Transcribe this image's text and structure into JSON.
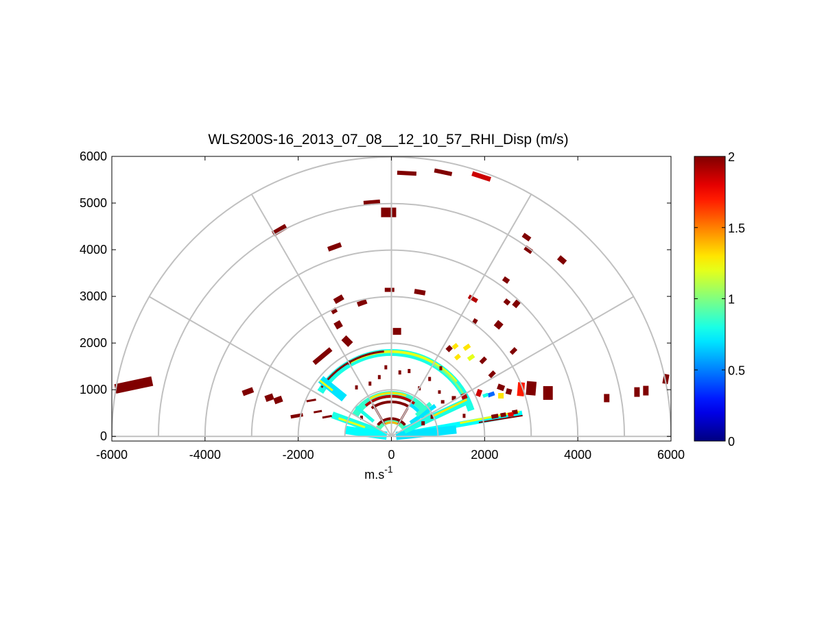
{
  "chart_data": {
    "type": "heatmap",
    "title": "WLS200S-16_2013_07_08__12_10_57_RHI_Disp (m/s)",
    "xlabel": "m.s",
    "xlabel_superscript": "-1",
    "ylabel": "",
    "xlim": [
      -6000,
      6000
    ],
    "ylim": [
      -100,
      6000
    ],
    "x_ticks": [
      -6000,
      -4000,
      -2000,
      0,
      2000,
      4000,
      6000
    ],
    "y_ticks": [
      0,
      1000,
      2000,
      3000,
      4000,
      5000,
      6000
    ],
    "polar_grid": {
      "range_rings": [
        1000,
        2000,
        3000,
        4000,
        5000,
        6000
      ],
      "spokes_deg": [
        0,
        30,
        60,
        90,
        120,
        150,
        180
      ]
    },
    "colorbar": {
      "colormap": "jet",
      "range": [
        0,
        2
      ],
      "ticks": [
        0,
        0.5,
        1,
        1.5,
        2
      ]
    },
    "cells": [
      {
        "x": -5530,
        "y": 1100,
        "v": 2,
        "w": 14,
        "h": 55,
        "a": 78
      },
      {
        "x": -3080,
        "y": 960,
        "v": 2,
        "w": 8,
        "h": 16,
        "a": 70
      },
      {
        "x": -2620,
        "y": 830,
        "v": 2,
        "w": 9,
        "h": 12,
        "a": 70
      },
      {
        "x": -2430,
        "y": 780,
        "v": 2,
        "w": 9,
        "h": 12,
        "a": 70
      },
      {
        "x": -2030,
        "y": 440,
        "v": 2,
        "w": 5,
        "h": 18,
        "a": 80
      },
      {
        "x": -1480,
        "y": 1720,
        "v": 2,
        "w": 32,
        "h": 7,
        "a": -40
      },
      {
        "x": -1580,
        "y": 530,
        "v": 2,
        "w": 3,
        "h": 12,
        "a": 80
      },
      {
        "x": -1380,
        "y": 420,
        "v": 2,
        "w": 3,
        "h": 14,
        "a": 80
      },
      {
        "x": -1720,
        "y": 770,
        "v": 2,
        "w": 3,
        "h": 14,
        "a": 80
      },
      {
        "x": -2400,
        "y": 4420,
        "v": 2,
        "w": 22,
        "h": 8,
        "a": -30
      },
      {
        "x": -1220,
        "y": 4060,
        "v": 2,
        "w": 20,
        "h": 7,
        "a": -20
      },
      {
        "x": -1130,
        "y": 2940,
        "v": 2,
        "w": 14,
        "h": 8,
        "a": -30
      },
      {
        "x": -630,
        "y": 2860,
        "v": 2,
        "w": 14,
        "h": 7,
        "a": -20
      },
      {
        "x": -1230,
        "y": 2690,
        "v": 2,
        "w": 8,
        "h": 7,
        "a": -30
      },
      {
        "x": -1140,
        "y": 2390,
        "v": 2,
        "w": 10,
        "h": 10,
        "a": -30
      },
      {
        "x": -950,
        "y": 2040,
        "v": 2,
        "w": 10,
        "h": 14,
        "a": -45
      },
      {
        "x": -420,
        "y": 5010,
        "v": 2,
        "w": 24,
        "h": 7,
        "a": -5
      },
      {
        "x": -60,
        "y": 4800,
        "v": 2,
        "w": 22,
        "h": 14,
        "a": 0
      },
      {
        "x": -40,
        "y": 3140,
        "v": 2,
        "w": 14,
        "h": 6,
        "a": 0
      },
      {
        "x": 120,
        "y": 2250,
        "v": 2,
        "w": 12,
        "h": 10,
        "a": 0
      },
      {
        "x": 330,
        "y": 5640,
        "v": 2,
        "w": 28,
        "h": 6,
        "a": 3
      },
      {
        "x": 1110,
        "y": 5660,
        "v": 2,
        "w": 26,
        "h": 6,
        "a": 12
      },
      {
        "x": 1930,
        "y": 5570,
        "v": 1.85,
        "w": 28,
        "h": 7,
        "a": 18
      },
      {
        "x": 610,
        "y": 3090,
        "v": 2,
        "w": 16,
        "h": 7,
        "a": 10
      },
      {
        "x": 1750,
        "y": 2950,
        "v": 1.9,
        "w": 14,
        "h": 6,
        "a": 30
      },
      {
        "x": 1790,
        "y": 2460,
        "v": 2,
        "w": 6,
        "h": 8,
        "a": 30
      },
      {
        "x": 2300,
        "y": 2390,
        "v": 2,
        "w": 10,
        "h": 10,
        "a": 40
      },
      {
        "x": 2480,
        "y": 2880,
        "v": 2,
        "w": 8,
        "h": 7,
        "a": 40
      },
      {
        "x": 2680,
        "y": 2840,
        "v": 2,
        "w": 8,
        "h": 10,
        "a": 40
      },
      {
        "x": 2460,
        "y": 3350,
        "v": 2,
        "w": 9,
        "h": 7,
        "a": 35
      },
      {
        "x": 2900,
        "y": 4270,
        "v": 2,
        "w": 12,
        "h": 7,
        "a": 35
      },
      {
        "x": 2940,
        "y": 4000,
        "v": 2,
        "w": 12,
        "h": 7,
        "a": 35
      },
      {
        "x": 3660,
        "y": 3780,
        "v": 2,
        "w": 12,
        "h": 8,
        "a": 40
      },
      {
        "x": 2160,
        "y": 1330,
        "v": 2,
        "w": 6,
        "h": 10,
        "a": 45
      },
      {
        "x": 1970,
        "y": 1630,
        "v": 2,
        "w": 6,
        "h": 10,
        "a": 45
      },
      {
        "x": 2620,
        "y": 1830,
        "v": 2,
        "w": 6,
        "h": 10,
        "a": 45
      },
      {
        "x": 2350,
        "y": 1050,
        "v": 2,
        "w": 10,
        "h": 8,
        "a": 20
      },
      {
        "x": 2520,
        "y": 960,
        "v": 2,
        "w": 8,
        "h": 8,
        "a": 15
      },
      {
        "x": 3000,
        "y": 1030,
        "v": 2,
        "w": 14,
        "h": 20,
        "a": 5
      },
      {
        "x": 3360,
        "y": 930,
        "v": 2,
        "w": 14,
        "h": 20,
        "a": 0
      },
      {
        "x": 4620,
        "y": 820,
        "v": 2,
        "w": 8,
        "h": 12,
        "a": 0
      },
      {
        "x": 5270,
        "y": 950,
        "v": 2,
        "w": 8,
        "h": 14,
        "a": 0
      },
      {
        "x": 5460,
        "y": 980,
        "v": 2,
        "w": 8,
        "h": 14,
        "a": 0
      },
      {
        "x": 5890,
        "y": 1230,
        "v": 2,
        "w": 8,
        "h": 14,
        "a": 10
      },
      {
        "x": 2780,
        "y": 1010,
        "v": 1.7,
        "w": 10,
        "h": 20,
        "a": 5
      },
      {
        "x": 1880,
        "y": 930,
        "v": 1.85,
        "w": 7,
        "h": 10,
        "a": 20
      },
      {
        "x": 2140,
        "y": 900,
        "v": 0.45,
        "w": 10,
        "h": 6,
        "a": -20
      },
      {
        "x": 2350,
        "y": 870,
        "v": 1.3,
        "w": 8,
        "h": 8,
        "a": 0
      },
      {
        "x": 2020,
        "y": 880,
        "v": 0.8,
        "w": 8,
        "h": 5,
        "a": -20
      },
      {
        "x": 1240,
        "y": 1880,
        "v": 2,
        "w": 7,
        "h": 8,
        "a": 45
      },
      {
        "x": 1370,
        "y": 1930,
        "v": 1.3,
        "w": 6,
        "h": 8,
        "a": 50
      },
      {
        "x": 1620,
        "y": 1910,
        "v": 1.3,
        "w": 6,
        "h": 10,
        "a": 55
      },
      {
        "x": 1420,
        "y": 1700,
        "v": 1.3,
        "w": 6,
        "h": 8,
        "a": 50
      },
      {
        "x": 1710,
        "y": 1690,
        "v": 1.2,
        "w": 6,
        "h": 10,
        "a": 55
      },
      {
        "x": 2650,
        "y": 520,
        "v": 2,
        "w": 8,
        "h": 6,
        "a": -10
      },
      {
        "x": 2560,
        "y": 470,
        "v": 1.8,
        "w": 8,
        "h": 6,
        "a": -10
      },
      {
        "x": 2400,
        "y": 460,
        "v": 2,
        "w": 8,
        "h": 6,
        "a": -10
      },
      {
        "x": 2220,
        "y": 430,
        "v": 2,
        "w": 10,
        "h": 6,
        "a": -10
      },
      {
        "x": 1560,
        "y": 860,
        "v": 1.9,
        "w": 8,
        "h": 8,
        "a": -20
      },
      {
        "x": 1340,
        "y": 820,
        "v": 2,
        "w": 6,
        "h": 6,
        "a": 0
      },
      {
        "x": 1100,
        "y": 740,
        "v": 2,
        "w": 5,
        "h": 5,
        "a": 0
      },
      {
        "x": 1030,
        "y": 950,
        "v": 2,
        "w": 4,
        "h": 5,
        "a": 0
      },
      {
        "x": 820,
        "y": 1230,
        "v": 2,
        "w": 4,
        "h": 6,
        "a": 0
      },
      {
        "x": 600,
        "y": 1030,
        "v": 2,
        "w": 4,
        "h": 6,
        "a": 0
      },
      {
        "x": -260,
        "y": 1270,
        "v": 2,
        "w": 4,
        "h": 6,
        "a": 0
      },
      {
        "x": -460,
        "y": 1130,
        "v": 2,
        "w": 4,
        "h": 6,
        "a": 0
      },
      {
        "x": -750,
        "y": 1050,
        "v": 2,
        "w": 4,
        "h": 6,
        "a": 0
      },
      {
        "x": -120,
        "y": 1480,
        "v": 2,
        "w": 4,
        "h": 6,
        "a": 0
      },
      {
        "x": 180,
        "y": 1370,
        "v": 2,
        "w": 4,
        "h": 6,
        "a": 0
      },
      {
        "x": 380,
        "y": 1400,
        "v": 2,
        "w": 4,
        "h": 6,
        "a": 0
      },
      {
        "x": 1060,
        "y": 1460,
        "v": 2,
        "w": 4,
        "h": 6,
        "a": 0
      },
      {
        "x": -900,
        "y": 1580,
        "v": 2,
        "w": 4,
        "h": 6,
        "a": 0
      },
      {
        "x": -640,
        "y": 400,
        "v": 2,
        "w": 4,
        "h": 6,
        "a": 0
      },
      {
        "x": 680,
        "y": 280,
        "v": 2,
        "w": 5,
        "h": 6,
        "a": 0
      },
      {
        "x": 870,
        "y": 420,
        "v": 2,
        "w": 4,
        "h": 6,
        "a": 0
      },
      {
        "x": 1560,
        "y": 440,
        "v": 2,
        "w": 4,
        "h": 6,
        "a": 0
      }
    ],
    "arc_cells": [
      {
        "r": 1800,
        "a0": 18,
        "a1": 148,
        "v": 0.8,
        "w": 10
      },
      {
        "r": 1820,
        "a0": 40,
        "a1": 120,
        "v": 1.2,
        "w": 4
      },
      {
        "r": 1790,
        "a0": 30,
        "a1": 60,
        "v": 1.0,
        "w": 3
      },
      {
        "r": 1830,
        "a0": 95,
        "a1": 145,
        "v": 2,
        "w": 3
      },
      {
        "r": 900,
        "a0": 25,
        "a1": 150,
        "v": 0.85,
        "w": 10
      },
      {
        "r": 860,
        "a0": 55,
        "a1": 130,
        "v": 1.9,
        "w": 4
      },
      {
        "r": 930,
        "a0": 70,
        "a1": 120,
        "v": 1.3,
        "w": 3
      },
      {
        "r": 740,
        "a0": 60,
        "a1": 125,
        "v": 2,
        "w": 4
      },
      {
        "r": 790,
        "a0": 30,
        "a1": 60,
        "v": 0.7,
        "w": 5
      },
      {
        "r": 330,
        "a0": 5,
        "a1": 175,
        "v": 0.9,
        "w": 8
      },
      {
        "r": 380,
        "a0": 40,
        "a1": 140,
        "v": 2,
        "w": 4
      },
      {
        "r": 300,
        "a0": 60,
        "a1": 120,
        "v": 1.4,
        "w": 3
      }
    ],
    "ray_cells": [
      {
        "a": 10,
        "r0": 200,
        "r1": 2850,
        "v": 0.75,
        "w": 8
      },
      {
        "a": 11,
        "r0": 1500,
        "r1": 2800,
        "v": 1.2,
        "w": 3
      },
      {
        "a": 9,
        "r0": 1900,
        "r1": 2850,
        "v": 2,
        "w": 2
      },
      {
        "a": 6,
        "r0": 100,
        "r1": 1400,
        "v": 0.7,
        "w": 12
      },
      {
        "a": 25,
        "r0": 300,
        "r1": 1850,
        "v": 0.8,
        "w": 10
      },
      {
        "a": 26,
        "r0": 1000,
        "r1": 1800,
        "v": 1.3,
        "w": 3
      },
      {
        "a": 160,
        "r0": 300,
        "r1": 1350,
        "v": 0.8,
        "w": 10
      },
      {
        "a": 161,
        "r0": 600,
        "r1": 1200,
        "v": 1.2,
        "w": 3
      },
      {
        "a": 172,
        "r0": 100,
        "r1": 1000,
        "v": 0.75,
        "w": 12
      },
      {
        "a": 141,
        "r0": 1300,
        "r1": 1950,
        "v": 0.7,
        "w": 12
      },
      {
        "a": 142,
        "r0": 1600,
        "r1": 1950,
        "v": 1.2,
        "w": 3
      },
      {
        "a": 35,
        "r0": 500,
        "r1": 1150,
        "v": 0.7,
        "w": 6
      },
      {
        "a": 40,
        "r0": 700,
        "r1": 1100,
        "v": 0.85,
        "w": 6
      },
      {
        "a": 140,
        "r0": 500,
        "r1": 1000,
        "v": 0.8,
        "w": 5
      },
      {
        "a": 120,
        "r0": 300,
        "r1": 800,
        "v": 2,
        "w": 3
      },
      {
        "a": 60,
        "r0": 300,
        "r1": 700,
        "v": 2,
        "w": 3
      }
    ]
  },
  "colors": {
    "grid": "#c0c0c0",
    "axis": "#000000",
    "background": "#ffffff"
  }
}
